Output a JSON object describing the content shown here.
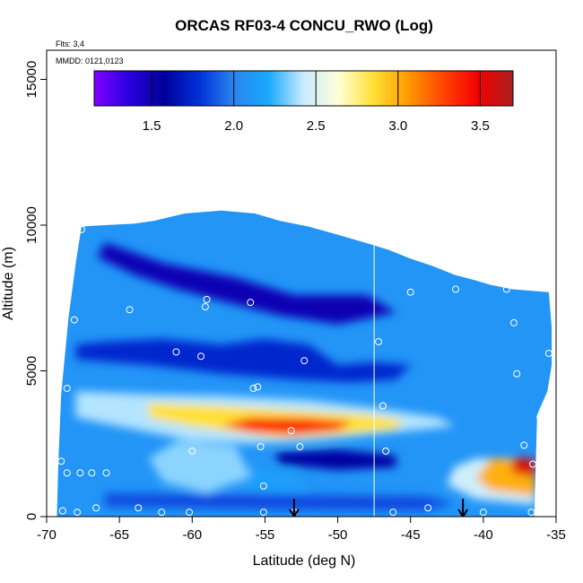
{
  "chart_data": {
    "type": "heatmap",
    "title": "ORCAS RF03-4 CONCU_RWO (Log)",
    "xlabel": "Latitude (deg N)",
    "ylabel": "Altitude (m)",
    "xlim": [
      -70,
      -35
    ],
    "ylim": [
      0,
      16000
    ],
    "x_ticks": [
      -70,
      -65,
      -60,
      -55,
      -50,
      -45,
      -40,
      -35
    ],
    "y_ticks": [
      0,
      5000,
      10000,
      15000
    ],
    "annotations": {
      "flights": "Flts: 3,4",
      "dates": "MMDD: 0121,0123"
    },
    "colorbar": {
      "min": 1.15,
      "max": 3.7,
      "ticks": [
        1.5,
        2.0,
        2.5,
        3.0,
        3.5
      ],
      "colors": [
        "#8000ff",
        "#2a00e0",
        "#00009a",
        "#0030d8",
        "#2a85f0",
        "#1aa8ff",
        "#c9ecff",
        "#ffffd8",
        "#ffe135",
        "#ff9a00",
        "#ff4400",
        "#f20000",
        "#a82020"
      ]
    },
    "field": {
      "background_value": 2.1,
      "envelope": [
        [
          -69.3,
          0
        ],
        [
          -69.2,
          1800
        ],
        [
          -69.0,
          4200
        ],
        [
          -68.5,
          6800
        ],
        [
          -68.0,
          8700
        ],
        [
          -67.6,
          9950
        ],
        [
          -66,
          10000
        ],
        [
          -64,
          10050
        ],
        [
          -62.6,
          10150
        ],
        [
          -60.5,
          10400
        ],
        [
          -58,
          10500
        ],
        [
          -55.7,
          10400
        ],
        [
          -54,
          10150
        ],
        [
          -52,
          9950
        ],
        [
          -50.2,
          9700
        ],
        [
          -48,
          9380
        ],
        [
          -46.5,
          9150
        ],
        [
          -45,
          8850
        ],
        [
          -43.5,
          8600
        ],
        [
          -42,
          8300
        ],
        [
          -40.5,
          8100
        ],
        [
          -39.5,
          7950
        ],
        [
          -38,
          7800
        ],
        [
          -35.5,
          7700
        ],
        [
          -35.3,
          6500
        ],
        [
          -35.3,
          5200
        ],
        [
          -35.6,
          4300
        ],
        [
          -36.3,
          3500
        ],
        [
          -36.4,
          1800
        ],
        [
          -36.5,
          0
        ]
      ],
      "features": [
        {
          "value": 1.5,
          "points": [
            [
              -66,
              9400
            ],
            [
              -62,
              8700
            ],
            [
              -57,
              8200
            ],
            [
              -53,
              7600
            ],
            [
              -48,
              7600
            ],
            [
              -46,
              7000
            ],
            [
              -50,
              6600
            ],
            [
              -54,
              6900
            ],
            [
              -58,
              7400
            ],
            [
              -61,
              7800
            ],
            [
              -64,
              8300
            ],
            [
              -66.5,
              8900
            ]
          ]
        },
        {
          "value": 1.75,
          "points": [
            [
              -68,
              5400
            ],
            [
              -63,
              5200
            ],
            [
              -58,
              4900
            ],
            [
              -53,
              4700
            ],
            [
              -49,
              4600
            ],
            [
              -46,
              4700
            ],
            [
              -45,
              5200
            ],
            [
              -47.5,
              5300
            ],
            [
              -50,
              5200
            ],
            [
              -52,
              5900
            ],
            [
              -55,
              6100
            ],
            [
              -58,
              5900
            ],
            [
              -62,
              6100
            ],
            [
              -66,
              6000
            ],
            [
              -68,
              5900
            ]
          ]
        },
        {
          "value": 2.4,
          "points": [
            [
              -68,
              4300
            ],
            [
              -63,
              4200
            ],
            [
              -58,
              4150
            ],
            [
              -52,
              4000
            ],
            [
              -47,
              3700
            ],
            [
              -43,
              3400
            ],
            [
              -42,
              3100
            ],
            [
              -46,
              2900
            ],
            [
              -52,
              2600
            ],
            [
              -56,
              2500
            ],
            [
              -60,
              2600
            ],
            [
              -64,
              3000
            ],
            [
              -68,
              3400
            ]
          ]
        },
        {
          "value": 2.85,
          "points": [
            [
              -63,
              3900
            ],
            [
              -58,
              3800
            ],
            [
              -53,
              3650
            ],
            [
              -48,
              3500
            ],
            [
              -45.5,
              3300
            ],
            [
              -46,
              3000
            ],
            [
              -50,
              2800
            ],
            [
              -54,
              2700
            ],
            [
              -57,
              2900
            ],
            [
              -60,
              3100
            ],
            [
              -63,
              3400
            ]
          ]
        },
        {
          "value": 3.35,
          "points": [
            [
              -56,
              3400
            ],
            [
              -52,
              3380
            ],
            [
              -49,
              3250
            ],
            [
              -50,
              2950
            ],
            [
              -53,
              2800
            ],
            [
              -56,
              2900
            ],
            [
              -58,
              3150
            ]
          ]
        },
        {
          "value": 1.6,
          "points": [
            [
              -54.3,
              2200
            ],
            [
              -50,
              2300
            ],
            [
              -46,
              2100
            ],
            [
              -46,
              1700
            ],
            [
              -50,
              1600
            ],
            [
              -54,
              1800
            ]
          ]
        },
        {
          "value": 2.45,
          "points": [
            [
              -40.5,
              2000
            ],
            [
              -36.5,
              2000
            ],
            [
              -36.4,
              400
            ],
            [
              -40.5,
              600
            ],
            [
              -42.5,
              1100
            ],
            [
              -42,
              1700
            ]
          ]
        },
        {
          "value": 3.0,
          "points": [
            [
              -39.5,
              2000
            ],
            [
              -36.5,
              1950
            ],
            [
              -36.4,
              700
            ],
            [
              -39.5,
              900
            ],
            [
              -40.5,
              1300
            ]
          ]
        },
        {
          "value": 3.55,
          "points": [
            [
              -38,
              2000
            ],
            [
              -36.5,
              2000
            ],
            [
              -36.4,
              1350
            ],
            [
              -38,
              1500
            ]
          ]
        },
        {
          "value": 1.85,
          "points": [
            [
              -66,
              800
            ],
            [
              -56,
              750
            ],
            [
              -44,
              700
            ],
            [
              -42,
              450
            ],
            [
              -44,
              200
            ],
            [
              -56,
              250
            ],
            [
              -66,
              350
            ]
          ]
        },
        {
          "value": 2.15,
          "points": [
            [
              -56,
              1700
            ],
            [
              -53,
              1500
            ],
            [
              -52,
              900
            ],
            [
              -55,
              900
            ],
            [
              -58,
              1200
            ]
          ]
        },
        {
          "value": 2.35,
          "points": [
            [
              -61,
              2600
            ],
            [
              -57,
              2400
            ],
            [
              -56,
              1400
            ],
            [
              -59,
              800
            ],
            [
              -62,
              1200
            ],
            [
              -63,
              2000
            ]
          ]
        }
      ]
    },
    "flight_track_latitude": -47.5,
    "sample_points": [
      [
        -57.1,
        10650
      ],
      [
        -67.6,
        9850
      ],
      [
        -64.3,
        7100
      ],
      [
        -59.0,
        7450
      ],
      [
        -59.1,
        7200
      ],
      [
        -56.0,
        7350
      ],
      [
        -68.1,
        6750
      ],
      [
        -61.1,
        5650
      ],
      [
        -59.4,
        5500
      ],
      [
        -52.3,
        5350
      ],
      [
        -68.6,
        4400
      ],
      [
        -55.8,
        4400
      ],
      [
        -55.5,
        4450
      ],
      [
        -47.2,
        6000
      ],
      [
        -46.9,
        3800
      ],
      [
        -45.0,
        7700
      ],
      [
        -41.9,
        7800
      ],
      [
        -38.4,
        7800
      ],
      [
        -35.1,
        7700
      ],
      [
        -37.9,
        6650
      ],
      [
        -35.5,
        5600
      ],
      [
        -37.7,
        4900
      ],
      [
        -36.1,
        3400
      ],
      [
        -37.2,
        2450
      ],
      [
        -36.6,
        1800
      ],
      [
        -53.2,
        2950
      ],
      [
        -52.6,
        2400
      ],
      [
        -55.3,
        2400
      ],
      [
        -60.0,
        2250
      ],
      [
        -46.7,
        2250
      ],
      [
        -69.0,
        1900
      ],
      [
        -68.6,
        1500
      ],
      [
        -67.7,
        1500
      ],
      [
        -66.9,
        1500
      ],
      [
        -65.9,
        1500
      ],
      [
        -55.1,
        1050
      ],
      [
        -63.7,
        300
      ],
      [
        -62.1,
        150
      ],
      [
        -60.2,
        150
      ],
      [
        -55.1,
        150
      ],
      [
        -53.0,
        150
      ],
      [
        -66.6,
        300
      ],
      [
        -67.9,
        150
      ],
      [
        -68.9,
        200
      ],
      [
        -46.2,
        150
      ],
      [
        -43.8,
        300
      ],
      [
        -40.0,
        150
      ],
      [
        -36.7,
        150
      ]
    ],
    "arrows": [
      -53.0,
      -41.4
    ]
  }
}
